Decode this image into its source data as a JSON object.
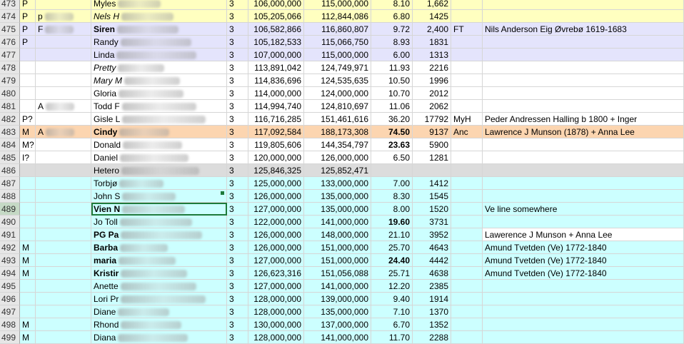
{
  "rows": [
    {
      "row": "473",
      "a": "P",
      "b": "",
      "c": "Myles",
      "c_style": "",
      "d": "3",
      "e": "106,000,000",
      "f": "115,000,000",
      "g": "8.10",
      "g_bold": false,
      "h": "1,662",
      "i": "",
      "j": "",
      "color": "yellow"
    },
    {
      "row": "474",
      "a": "P",
      "b": "p",
      "c": "Nels H",
      "c_style": "ital",
      "d": "3",
      "e": "105,205,066",
      "f": "112,844,086",
      "g": "6.80",
      "g_bold": false,
      "h": "1425",
      "i": "",
      "j": "",
      "color": "yellow"
    },
    {
      "row": "475",
      "a": "P",
      "b": "F",
      "c": "Siren",
      "c_style": "bold",
      "d": "3",
      "e": "106,582,866",
      "f": "116,860,807",
      "g": "9.72",
      "g_bold": false,
      "h": "2,400",
      "i": "FT",
      "j": "Nils Anderson Eig Øvrebø 1619-1683",
      "color": "lav"
    },
    {
      "row": "476",
      "a": "P",
      "b": "",
      "c": "Randy",
      "c_style": "",
      "d": "3",
      "e": "105,182,533",
      "f": "115,066,750",
      "g": "8.93",
      "g_bold": false,
      "h": "1831",
      "i": "",
      "j": "",
      "color": "lav"
    },
    {
      "row": "477",
      "a": "",
      "b": "",
      "c": "Linda",
      "c_style": "",
      "d": "3",
      "e": "107,000,000",
      "f": "115,000,000",
      "g": "6.00",
      "g_bold": false,
      "h": "1313",
      "i": "",
      "j": "",
      "color": "lav"
    },
    {
      "row": "478",
      "a": "",
      "b": "",
      "c": "Pretty",
      "c_style": "ital",
      "d": "3",
      "e": "113,891,042",
      "f": "124,749,971",
      "g": "11.93",
      "g_bold": false,
      "h": "2216",
      "i": "",
      "j": "",
      "color": "white"
    },
    {
      "row": "479",
      "a": "",
      "b": "",
      "c": "Mary M",
      "c_style": "ital",
      "d": "3",
      "e": "114,836,696",
      "f": "124,535,635",
      "g": "10.50",
      "g_bold": false,
      "h": "1996",
      "i": "",
      "j": "",
      "color": "white"
    },
    {
      "row": "480",
      "a": "",
      "b": "",
      "c": "Gloria",
      "c_style": "",
      "d": "3",
      "e": "114,000,000",
      "f": "124,000,000",
      "g": "10.70",
      "g_bold": false,
      "h": "2012",
      "i": "",
      "j": "",
      "color": "white"
    },
    {
      "row": "481",
      "a": "",
      "b": "A",
      "c": "Todd F",
      "c_style": "",
      "d": "3",
      "e": "114,994,740",
      "f": "124,810,697",
      "g": "11.06",
      "g_bold": false,
      "h": "2062",
      "i": "",
      "j": "",
      "color": "white"
    },
    {
      "row": "482",
      "a": "P?",
      "b": "",
      "c": "Gisle L",
      "c_style": "",
      "d": "3",
      "e": "116,716,285",
      "f": "151,461,616",
      "g": "36.20",
      "g_bold": false,
      "h": "17792",
      "i": "MyH",
      "j": "Peder Andressen Halling b 1800 + Inger",
      "color": "white"
    },
    {
      "row": "483",
      "a": "M",
      "b": "A",
      "c": "Cindy",
      "c_style": "bold",
      "d": "3",
      "e": "117,092,584",
      "f": "188,173,308",
      "g": "74.50",
      "g_bold": true,
      "h": "9137",
      "i": "Anc",
      "j": "Lawrence J Munson (1878) + Anna Lee",
      "color": "orange"
    },
    {
      "row": "484",
      "a": "M?",
      "b": "",
      "c": "Donald",
      "c_style": "",
      "d": "3",
      "e": "119,805,606",
      "f": "144,354,797",
      "g": "23.63",
      "g_bold": true,
      "h": "5900",
      "i": "",
      "j": "",
      "color": "white"
    },
    {
      "row": "485",
      "a": "I?",
      "b": "",
      "c": "Daniel",
      "c_style": "",
      "d": "3",
      "e": "120,000,000",
      "f": "126,000,000",
      "g": "6.50",
      "g_bold": false,
      "h": "1281",
      "i": "",
      "j": "",
      "color": "white"
    },
    {
      "row": "486",
      "a": "",
      "b": "",
      "c": "Hetero",
      "c_style": "",
      "d": "3",
      "e": "125,846,325",
      "f": "125,852,471",
      "g": "",
      "g_bold": false,
      "h": "",
      "i": "",
      "j": "",
      "color": "grey"
    },
    {
      "row": "487",
      "a": "",
      "b": "",
      "c": "Torbjø",
      "c_style": "",
      "d": "3",
      "e": "125,000,000",
      "f": "133,000,000",
      "g": "7.00",
      "g_bold": false,
      "h": "1412",
      "i": "",
      "j": "",
      "color": "cyan"
    },
    {
      "row": "488",
      "a": "",
      "b": "",
      "c": "John S",
      "c_style": "",
      "d": "3",
      "e": "126,000,000",
      "f": "135,000,000",
      "g": "8.30",
      "g_bold": false,
      "h": "1545",
      "i": "",
      "j": "",
      "color": "cyan"
    },
    {
      "row": "489",
      "a": "",
      "b": "",
      "c": "Vien N",
      "c_style": "bold",
      "d": "3",
      "e": "127,000,000",
      "f": "135,000,000",
      "g": "8.00",
      "g_bold": false,
      "h": "1520",
      "i": "",
      "j": "Ve line somewhere",
      "color": "cyan",
      "selected": true
    },
    {
      "row": "490",
      "a": "",
      "b": "",
      "c": "Jo Toll",
      "c_style": "",
      "d": "3",
      "e": "122,000,000",
      "f": "141,000,000",
      "g": "19.60",
      "g_bold": true,
      "h": "3731",
      "i": "",
      "j": "",
      "color": "cyan"
    },
    {
      "row": "491",
      "a": "",
      "b": "",
      "c": "PG Pa",
      "c_style": "bold",
      "d": "3",
      "e": "126,000,000",
      "f": "148,000,000",
      "g": "21.10",
      "g_bold": false,
      "h": "3952",
      "i": "",
      "j": "Lawerence J Munson + Anna Lee",
      "color": "cyan",
      "j_white": true
    },
    {
      "row": "492",
      "a": "M",
      "b": "",
      "c": "Barba",
      "c_style": "bold",
      "d": "3",
      "e": "126,000,000",
      "f": "151,000,000",
      "g": "25.70",
      "g_bold": false,
      "h": "4643",
      "i": "",
      "j": "Amund Tvetden (Ve) 1772-1840",
      "color": "cyan"
    },
    {
      "row": "493",
      "a": "M",
      "b": "",
      "c": "maria",
      "c_style": "bold",
      "d": "3",
      "e": "127,000,000",
      "f": "151,000,000",
      "g": "24.40",
      "g_bold": true,
      "h": "4442",
      "i": "",
      "j": "Amund Tvetden (Ve) 1772-1840",
      "color": "cyan"
    },
    {
      "row": "494",
      "a": "M",
      "b": "",
      "c": "Kristir",
      "c_style": "bold",
      "d": "3",
      "e": "126,623,316",
      "f": "151,056,088",
      "g": "25.71",
      "g_bold": false,
      "h": "4638",
      "i": "",
      "j": "Amund Tvetden (Ve) 1772-1840",
      "color": "cyan"
    },
    {
      "row": "495",
      "a": "",
      "b": "",
      "c": "Anette",
      "c_style": "",
      "d": "3",
      "e": "127,000,000",
      "f": "141,000,000",
      "g": "12.20",
      "g_bold": false,
      "h": "2385",
      "i": "",
      "j": "",
      "color": "cyan"
    },
    {
      "row": "496",
      "a": "",
      "b": "",
      "c": "Lori Pr",
      "c_style": "",
      "d": "3",
      "e": "128,000,000",
      "f": "139,000,000",
      "g": "9.40",
      "g_bold": false,
      "h": "1914",
      "i": "",
      "j": "",
      "color": "cyan"
    },
    {
      "row": "497",
      "a": "",
      "b": "",
      "c": "Diane",
      "c_style": "",
      "d": "3",
      "e": "128,000,000",
      "f": "135,000,000",
      "g": "7.10",
      "g_bold": false,
      "h": "1370",
      "i": "",
      "j": "",
      "color": "cyan"
    },
    {
      "row": "498",
      "a": "M",
      "b": "",
      "c": "Rhond",
      "c_style": "",
      "d": "3",
      "e": "130,000,000",
      "f": "137,000,000",
      "g": "6.70",
      "g_bold": false,
      "h": "1352",
      "i": "",
      "j": "",
      "color": "cyan"
    },
    {
      "row": "499",
      "a": "M",
      "b": "",
      "c": "Diana",
      "c_style": "",
      "d": "3",
      "e": "128,000,000",
      "f": "141,000,000",
      "g": "11.70",
      "g_bold": false,
      "h": "2288",
      "i": "",
      "j": "",
      "color": "cyan"
    }
  ]
}
